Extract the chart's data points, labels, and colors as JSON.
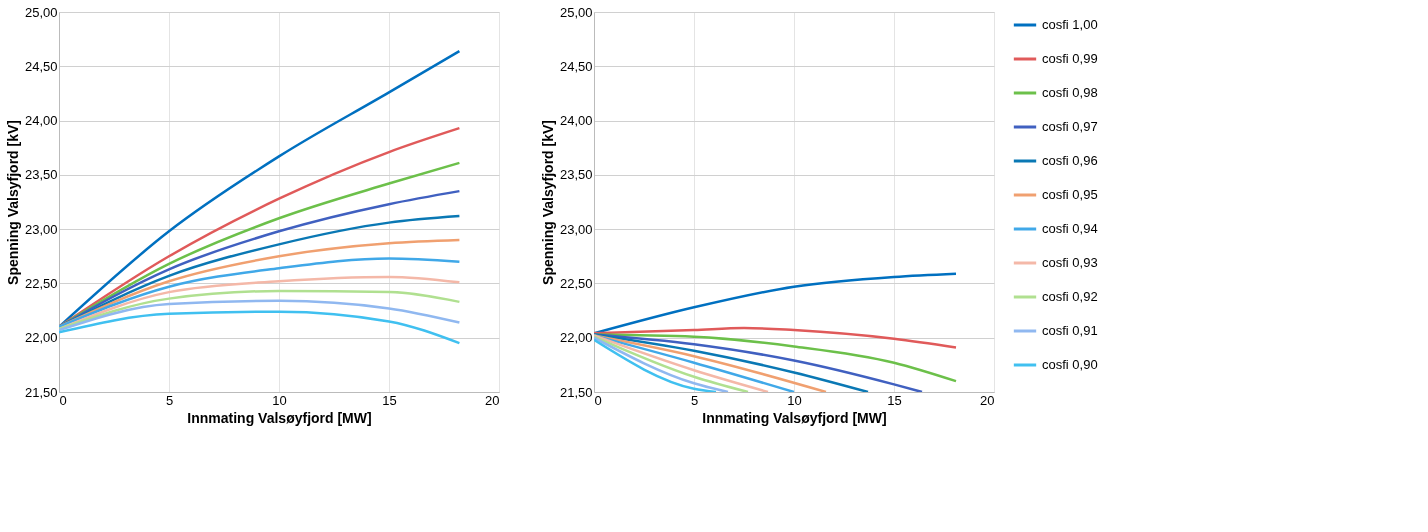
{
  "chart_data": [
    {
      "type": "line",
      "xlabel": "Innmating Valsøyfjord [MW]",
      "ylabel": "Spenning Valsyfjord [kV]",
      "xlim": [
        0,
        20
      ],
      "xticks": [
        0,
        5,
        10,
        15,
        20
      ],
      "ylim": [
        21.5,
        25
      ],
      "yticks": [
        {
          "value": 21.5,
          "label": "21,50"
        },
        {
          "value": 22,
          "label": "22,00"
        },
        {
          "value": 22.5,
          "label": "22,50"
        },
        {
          "value": 23,
          "label": "23,00"
        },
        {
          "value": 23.5,
          "label": "23,50"
        },
        {
          "value": 24,
          "label": "24,00"
        },
        {
          "value": 24.5,
          "label": "24,50"
        },
        {
          "value": 25,
          "label": "25,00"
        }
      ],
      "grid": true,
      "legend": false,
      "marker": "none",
      "line_style": "solid",
      "x": [
        0,
        5,
        10,
        15,
        18.2
      ],
      "series": [
        {
          "color": "#0070c0",
          "values": [
            22.1,
            22.98,
            23.67,
            24.26,
            24.64
          ]
        },
        {
          "color": "#e05a5a",
          "values": [
            22.1,
            22.75,
            23.28,
            23.71,
            23.93
          ]
        },
        {
          "color": "#6cc04a",
          "values": [
            22.1,
            22.68,
            23.1,
            23.42,
            23.61
          ]
        },
        {
          "color": "#4060c0",
          "values": [
            22.1,
            22.63,
            22.98,
            23.23,
            23.35
          ]
        },
        {
          "color": "#0a78b4",
          "values": [
            22.1,
            22.57,
            22.86,
            23.06,
            23.12
          ]
        },
        {
          "color": "#f0a070",
          "values": [
            22.1,
            22.52,
            22.75,
            22.87,
            22.9
          ]
        },
        {
          "color": "#40a8e8",
          "values": [
            22.1,
            22.47,
            22.64,
            22.73,
            22.7
          ]
        },
        {
          "color": "#f4b8a8",
          "values": [
            22.08,
            22.42,
            22.52,
            22.56,
            22.51
          ]
        },
        {
          "color": "#b0e090",
          "values": [
            22.08,
            22.36,
            22.43,
            22.42,
            22.33
          ]
        },
        {
          "color": "#90b8f0",
          "values": [
            22.07,
            22.31,
            22.34,
            22.27,
            22.14
          ]
        },
        {
          "color": "#40c0f0",
          "values": [
            22.05,
            22.22,
            22.24,
            22.15,
            21.95
          ]
        }
      ]
    },
    {
      "type": "line",
      "xlabel": "Innmating Valsøyfjord [MW]",
      "ylabel": "Spenning Valsyfjord [kV]",
      "xlim": [
        0,
        20
      ],
      "xticks": [
        0,
        5,
        10,
        15,
        20
      ],
      "ylim": [
        21.5,
        25
      ],
      "yticks": [
        {
          "value": 21.5,
          "label": "21,50"
        },
        {
          "value": 22,
          "label": "22,00"
        },
        {
          "value": 22.5,
          "label": "22,50"
        },
        {
          "value": 23,
          "label": "23,00"
        },
        {
          "value": 23.5,
          "label": "23,50"
        },
        {
          "value": 24,
          "label": "24,00"
        },
        {
          "value": 24.5,
          "label": "24,50"
        },
        {
          "value": 25,
          "label": "25,00"
        }
      ],
      "grid": true,
      "legend": "right",
      "marker": "none",
      "line_style": "solid",
      "series": [
        {
          "name": "cosfi 1,00",
          "color": "#0070c0",
          "x": [
            0,
            5,
            10,
            15,
            18.1
          ],
          "values": [
            22.04,
            22.28,
            22.47,
            22.56,
            22.59
          ]
        },
        {
          "name": "cosfi 0,99",
          "color": "#e05a5a",
          "x": [
            0,
            5,
            7.5,
            10,
            15,
            18.1
          ],
          "values": [
            22.04,
            22.07,
            22.09,
            22.07,
            21.99,
            21.91
          ]
        },
        {
          "name": "cosfi 0,98",
          "color": "#6cc04a",
          "x": [
            0,
            5,
            10,
            15,
            18.1
          ],
          "values": [
            22.03,
            22.01,
            21.92,
            21.77,
            21.6
          ]
        },
        {
          "name": "cosfi 0,97",
          "color": "#4060c0",
          "x": [
            0,
            5,
            10,
            15,
            16.4
          ],
          "values": [
            22.03,
            21.94,
            21.79,
            21.57,
            21.5
          ]
        },
        {
          "name": "cosfi 0,96",
          "color": "#0a78b4",
          "x": [
            0,
            5,
            10,
            13.7
          ],
          "values": [
            22.03,
            21.88,
            21.68,
            21.5
          ]
        },
        {
          "name": "cosfi 0,95",
          "color": "#f0a070",
          "x": [
            0,
            5,
            11.6
          ],
          "values": [
            22.02,
            21.83,
            21.5
          ]
        },
        {
          "name": "cosfi 0,94",
          "color": "#40a8e8",
          "x": [
            0,
            5,
            10
          ],
          "values": [
            22.02,
            21.77,
            21.5
          ]
        },
        {
          "name": "cosfi 0,93",
          "color": "#f4b8a8",
          "x": [
            0,
            5,
            8.7
          ],
          "values": [
            22.02,
            21.7,
            21.5
          ]
        },
        {
          "name": "cosfi 0,92",
          "color": "#b0e090",
          "x": [
            0,
            5,
            7.7
          ],
          "values": [
            22.01,
            21.64,
            21.5
          ]
        },
        {
          "name": "cosfi 0,91",
          "color": "#90b8f0",
          "x": [
            0,
            5,
            6.7
          ],
          "values": [
            22.0,
            21.58,
            21.5
          ]
        },
        {
          "name": "cosfi 0,90",
          "color": "#40c0f0",
          "x": [
            0,
            5,
            6.1
          ],
          "values": [
            21.98,
            21.53,
            21.5
          ]
        }
      ]
    }
  ]
}
